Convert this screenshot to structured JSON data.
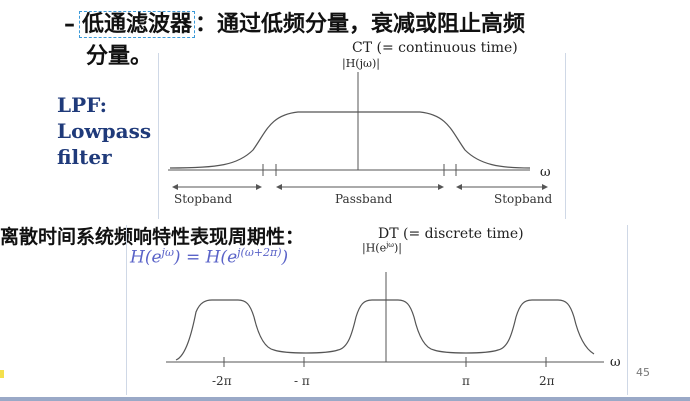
{
  "heading": {
    "dash": "–",
    "term": "低通滤波器",
    "rest_line1": "：通过低频分量，衰减或阻止高频",
    "line2": "分量。"
  },
  "lpf_label": [
    "LPF:",
    "Lowpass",
    "filter"
  ],
  "ct_figure": {
    "title": "CT (= continuous time)",
    "ylabel": "|H(jω)|",
    "xlabel": "ω",
    "bands": [
      "Stopband",
      "Passband",
      "Stopband"
    ]
  },
  "dt_section": {
    "heading": "离散时间系统频响特性表现周期性：",
    "formula": "H(e^{jω}) = H(e^{j(ω+2π)})",
    "formula_display": "H(e",
    "title": "DT (= discrete time)",
    "ylabel": "|H(e^{jω})|",
    "xlabel": "ω",
    "ticks": [
      "-2π",
      "- π",
      "π",
      "2π"
    ]
  },
  "page_number": "45",
  "colors": {
    "accent": "#1f3a7a",
    "formula": "#5a63c8",
    "dashed_box": "#3b9ad9"
  }
}
